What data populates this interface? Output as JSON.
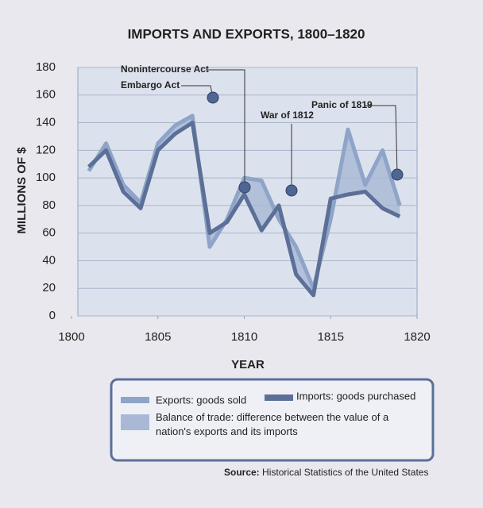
{
  "chart_data": {
    "type": "line",
    "title": "IMPORTS AND EXPORTS, 1800–1820",
    "x_label": "YEAR",
    "y_label": "MILLIONS OF $",
    "x": [
      1801,
      1802,
      1803,
      1804,
      1805,
      1806,
      1807,
      1808,
      1809,
      1810,
      1811,
      1812,
      1813,
      1814,
      1815,
      1816,
      1817,
      1818,
      1819
    ],
    "series": [
      {
        "name": "Exports: goods sold",
        "color": "#8ea4c8",
        "values": [
          105,
          125,
          95,
          82,
          125,
          138,
          145,
          50,
          70,
          100,
          98,
          70,
          50,
          20,
          70,
          135,
          95,
          120,
          80
        ]
      },
      {
        "name": "Imports: goods purchased",
        "color": "#5b6f97",
        "values": [
          108,
          120,
          90,
          78,
          120,
          132,
          140,
          60,
          68,
          88,
          62,
          80,
          30,
          15,
          85,
          88,
          90,
          78,
          72
        ]
      }
    ],
    "balance_label": "Balance of trade: difference between the value of a nation's exports and its imports",
    "balance_color": "#a9b8d4",
    "annotations": [
      "Nonintercourse Act",
      "Embargo Act",
      "War of 1812",
      "Panic of 1819"
    ],
    "xlim": [
      1800,
      1820
    ],
    "xticks": [
      1800,
      1805,
      1810,
      1815,
      1820
    ],
    "ylim": [
      0,
      180
    ],
    "yticks": [
      0,
      20,
      40,
      60,
      80,
      100,
      120,
      140,
      160,
      180
    ],
    "grid": true,
    "source_label": "Source:",
    "source": "Historical Statistics of the United States"
  }
}
